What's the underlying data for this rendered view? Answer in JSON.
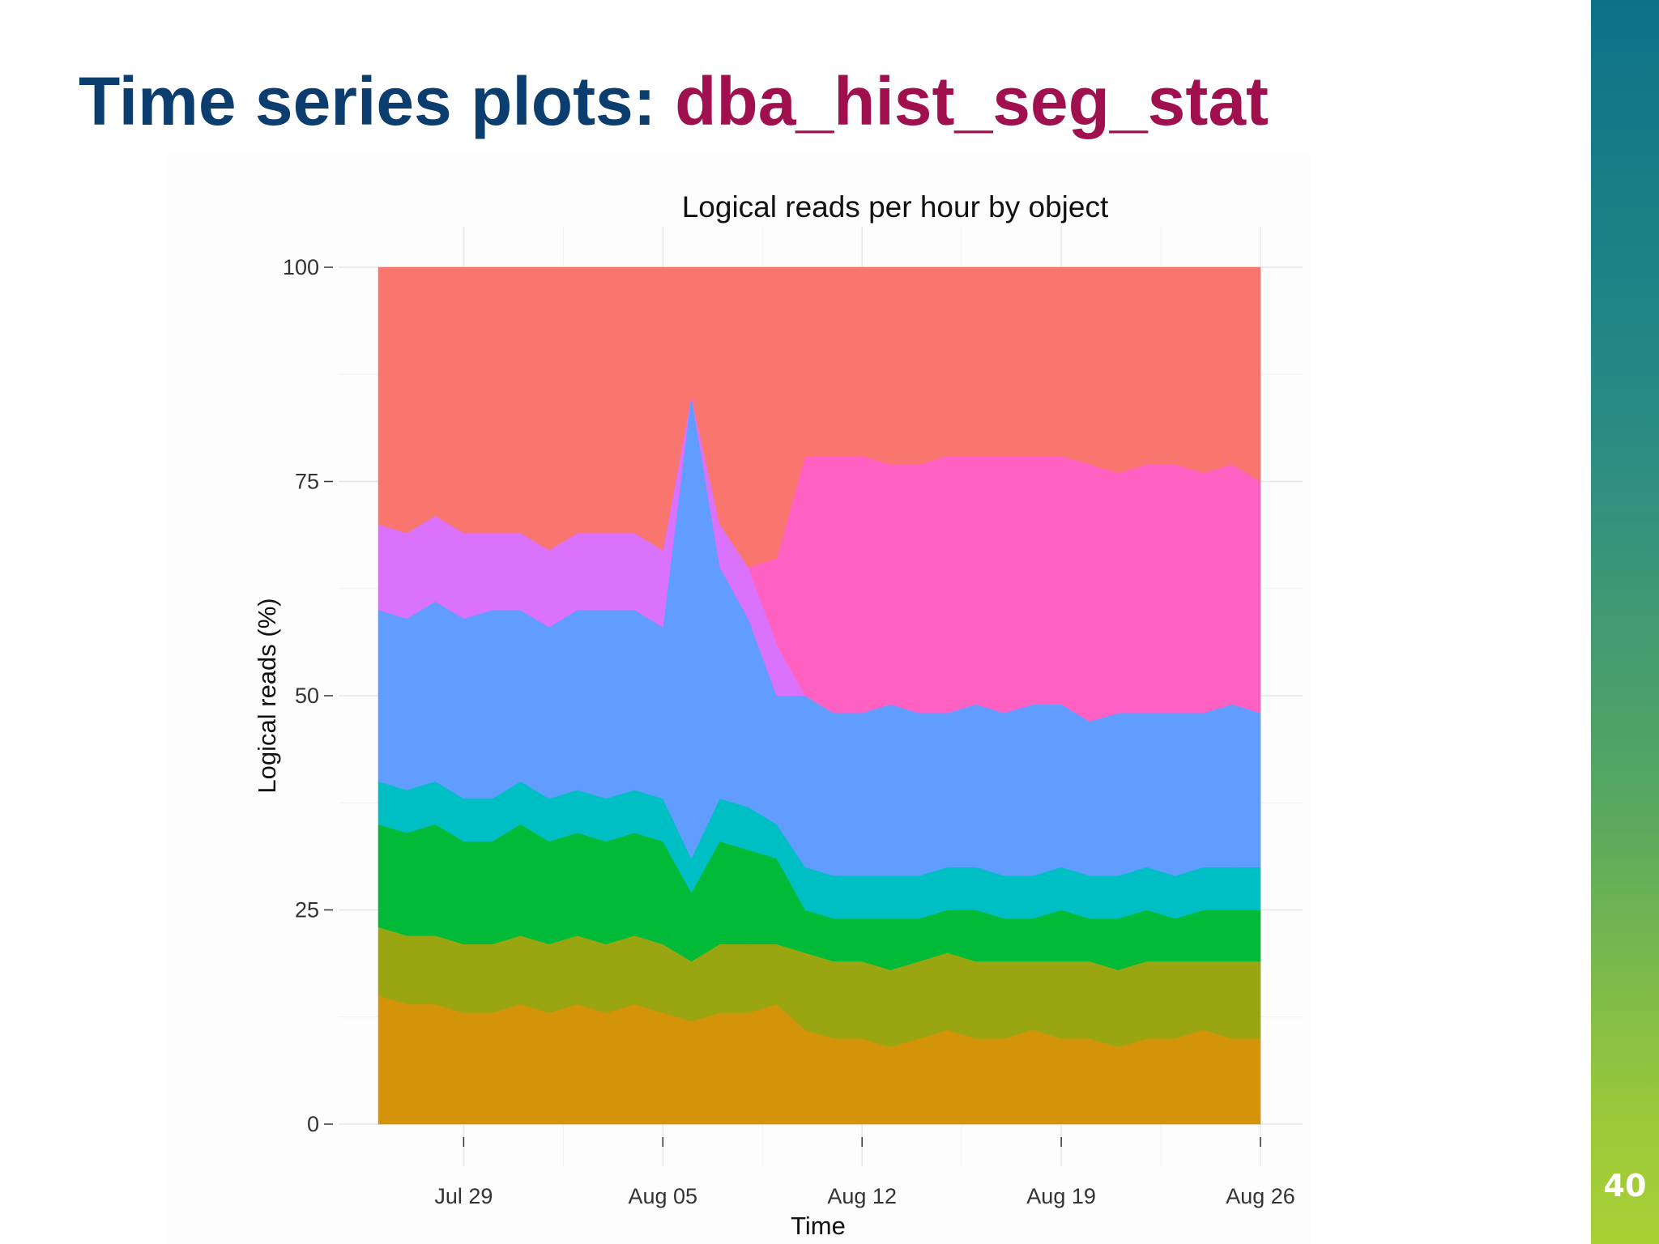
{
  "slide": {
    "title_main": "Time series plots: ",
    "title_accent": "dba_hist_seg_stat",
    "page_number": "40"
  },
  "colors": {
    "title_main": "#0b3d6e",
    "title_accent": "#a0104f",
    "side_bar_top": "#0d7288",
    "side_bar_bottom": "#a9d034"
  },
  "chart_data": {
    "type": "area",
    "stacked": true,
    "normalized_percent": true,
    "title": "Logical reads per hour by object",
    "xlabel": "Time",
    "ylabel": "Logical reads (%)",
    "ylim": [
      0,
      100
    ],
    "yticks": [
      0,
      25,
      50,
      75,
      100
    ],
    "xlim": [
      "2013-07-26",
      "2013-08-26"
    ],
    "xticks": [
      {
        "date": "2013-07-29",
        "label": "Jul 29"
      },
      {
        "date": "2013-08-05",
        "label": "Aug 05"
      },
      {
        "date": "2013-08-12",
        "label": "Aug 12"
      },
      {
        "date": "2013-08-19",
        "label": "Aug 19"
      },
      {
        "date": "2013-08-26",
        "label": "Aug 26"
      }
    ],
    "grid": true,
    "legend": "none",
    "x": [
      "2013-07-26",
      "2013-07-27",
      "2013-07-28",
      "2013-07-29",
      "2013-07-30",
      "2013-07-31",
      "2013-08-01",
      "2013-08-02",
      "2013-08-03",
      "2013-08-04",
      "2013-08-05",
      "2013-08-06",
      "2013-08-07",
      "2013-08-08",
      "2013-08-09",
      "2013-08-10",
      "2013-08-11",
      "2013-08-12",
      "2013-08-13",
      "2013-08-14",
      "2013-08-15",
      "2013-08-16",
      "2013-08-17",
      "2013-08-18",
      "2013-08-19",
      "2013-08-20",
      "2013-08-21",
      "2013-08-22",
      "2013-08-23",
      "2013-08-24",
      "2013-08-25",
      "2013-08-26"
    ],
    "series": [
      {
        "color": "#d4940a",
        "values": [
          15,
          14,
          14,
          13,
          13,
          14,
          13,
          14,
          13,
          14,
          13,
          12,
          13,
          13,
          14,
          11,
          10,
          10,
          9,
          10,
          11,
          10,
          10,
          11,
          10,
          10,
          9,
          10,
          10,
          11,
          10,
          10
        ]
      },
      {
        "color": "#9aa512",
        "values": [
          8,
          8,
          8,
          8,
          8,
          8,
          8,
          8,
          8,
          8,
          8,
          7,
          8,
          8,
          7,
          9,
          9,
          9,
          9,
          9,
          9,
          9,
          9,
          8,
          9,
          9,
          9,
          9,
          9,
          8,
          9,
          9
        ]
      },
      {
        "color": "#00ba38",
        "values": [
          12,
          12,
          13,
          12,
          12,
          13,
          12,
          12,
          12,
          12,
          12,
          8,
          12,
          11,
          10,
          5,
          5,
          5,
          6,
          5,
          5,
          6,
          5,
          5,
          6,
          5,
          6,
          6,
          5,
          6,
          6,
          6
        ]
      },
      {
        "color": "#00bfc4",
        "values": [
          5,
          5,
          5,
          5,
          5,
          5,
          5,
          5,
          5,
          5,
          5,
          4,
          5,
          5,
          4,
          5,
          5,
          5,
          5,
          5,
          5,
          5,
          5,
          5,
          5,
          5,
          5,
          5,
          5,
          5,
          5,
          5
        ]
      },
      {
        "color": "#619cff",
        "values": [
          20,
          20,
          21,
          21,
          22,
          20,
          20,
          21,
          22,
          21,
          20,
          54,
          27,
          22,
          15,
          20,
          19,
          19,
          20,
          19,
          18,
          19,
          19,
          20,
          19,
          18,
          19,
          18,
          19,
          18,
          19,
          18
        ]
      },
      {
        "color": "#db72fb",
        "values": [
          10,
          10,
          10,
          10,
          9,
          9,
          9,
          9,
          9,
          9,
          9,
          0,
          5,
          6,
          6,
          0,
          0,
          0,
          0,
          0,
          0,
          0,
          0,
          0,
          0,
          0,
          0,
          0,
          0,
          0,
          0,
          0
        ]
      },
      {
        "color": "#ff61c3",
        "values": [
          0,
          0,
          0,
          0,
          0,
          0,
          0,
          0,
          0,
          0,
          0,
          0,
          0,
          0,
          10,
          28,
          30,
          30,
          28,
          29,
          30,
          29,
          30,
          29,
          29,
          30,
          28,
          29,
          29,
          28,
          28,
          27
        ]
      },
      {
        "color": "#f8766d",
        "values": [
          30,
          31,
          29,
          31,
          31,
          31,
          33,
          31,
          31,
          31,
          33,
          15,
          30,
          35,
          34,
          22,
          22,
          22,
          23,
          23,
          22,
          22,
          22,
          22,
          22,
          23,
          24,
          23,
          23,
          24,
          23,
          25
        ]
      }
    ]
  }
}
